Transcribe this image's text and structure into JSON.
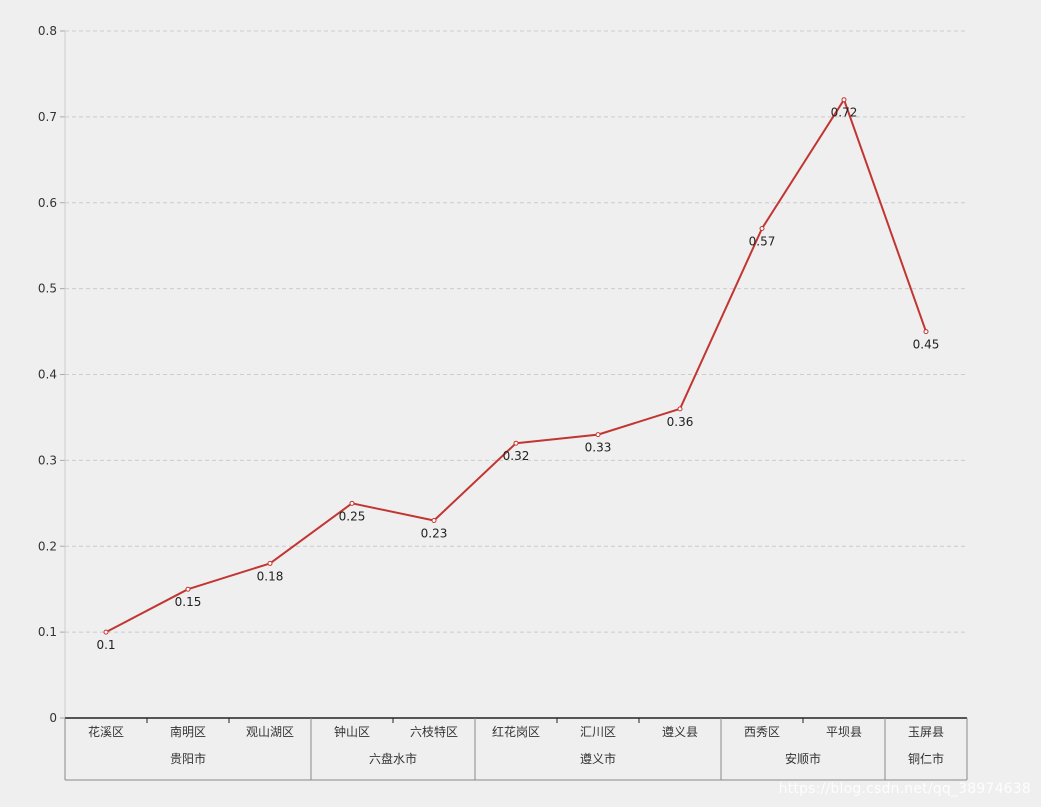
{
  "chart_data": {
    "type": "line",
    "categories": [
      "花溪区",
      "南明区",
      "观山湖区",
      "钟山区",
      "六枝特区",
      "红花岗区",
      "汇川区",
      "遵义县",
      "西秀区",
      "平坝县",
      "玉屏县"
    ],
    "groups": [
      {
        "label": "贵阳市",
        "count": 3
      },
      {
        "label": "六盘水市",
        "count": 2
      },
      {
        "label": "遵义市",
        "count": 3
      },
      {
        "label": "安顺市",
        "count": 2
      },
      {
        "label": "铜仁市",
        "count": 1
      }
    ],
    "series": [
      {
        "values": [
          0.1,
          0.15,
          0.18,
          0.25,
          0.23,
          0.32,
          0.33,
          0.36,
          0.57,
          0.72,
          0.45
        ]
      }
    ],
    "value_labels": [
      "0.1",
      "0.15",
      "0.18",
      "0.25",
      "0.23",
      "0.32",
      "0.33",
      "0.36",
      "0.57",
      "0.72",
      "0.45"
    ],
    "y_ticks": [
      "0",
      "0.1",
      "0.2",
      "0.3",
      "0.4",
      "0.5",
      "0.6",
      "0.7",
      "0.8"
    ],
    "ylim": [
      0,
      0.8
    ],
    "grid": true,
    "line_color": "#c23531",
    "title": "",
    "xlabel": "",
    "ylabel": ""
  },
  "watermark": "https://blog.csdn.net/qq_38974638"
}
